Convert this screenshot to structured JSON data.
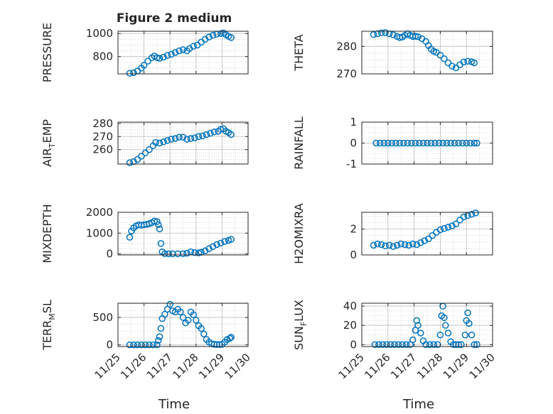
{
  "figure_title": "Figure 2 medium",
  "colors": {
    "marker": "#0072BD",
    "axis": "#262626",
    "grid": "#bdbdbd",
    "background": "#ffffff"
  },
  "x_axis": {
    "label": "Time",
    "range": [
      "11/25",
      "11/30"
    ],
    "tick_labels": [
      "11/25",
      "11/26",
      "11/27",
      "11/28",
      "11/29",
      "11/30"
    ]
  },
  "chart_data": [
    {
      "type": "scatter",
      "marker": "open-circle",
      "grid": true,
      "title": "Figure 2 medium",
      "ylabel": "PRESSURE",
      "ylabel_parts": null,
      "ylim": [
        650,
        1020
      ],
      "yticks": [
        800,
        1000
      ],
      "yticklabels": [
        "800",
        "1000"
      ],
      "points": [
        [
          0.45,
          655
        ],
        [
          0.6,
          660
        ],
        [
          0.75,
          675
        ],
        [
          0.9,
          700
        ],
        [
          1.0,
          725
        ],
        [
          1.15,
          760
        ],
        [
          1.3,
          790
        ],
        [
          1.4,
          805
        ],
        [
          1.5,
          790
        ],
        [
          1.6,
          785
        ],
        [
          1.75,
          795
        ],
        [
          1.9,
          810
        ],
        [
          2.05,
          820
        ],
        [
          2.2,
          835
        ],
        [
          2.35,
          850
        ],
        [
          2.5,
          860
        ],
        [
          2.65,
          850
        ],
        [
          2.75,
          870
        ],
        [
          2.9,
          890
        ],
        [
          3.05,
          900
        ],
        [
          3.2,
          925
        ],
        [
          3.35,
          950
        ],
        [
          3.5,
          970
        ],
        [
          3.65,
          985
        ],
        [
          3.8,
          995
        ],
        [
          3.95,
          1000
        ],
        [
          4.05,
          1005
        ],
        [
          4.15,
          990
        ],
        [
          4.25,
          975
        ],
        [
          4.35,
          965
        ]
      ]
    },
    {
      "type": "scatter",
      "marker": "open-circle",
      "grid": true,
      "ylabel": "THETA",
      "ylabel_parts": null,
      "ylim": [
        270,
        285.5
      ],
      "yticks": [
        270,
        280
      ],
      "yticklabels": [
        "270",
        "280"
      ],
      "points": [
        [
          0.45,
          284.3
        ],
        [
          0.6,
          284.6
        ],
        [
          0.75,
          284.9
        ],
        [
          0.9,
          285.0
        ],
        [
          1.05,
          284.6
        ],
        [
          1.2,
          284.2
        ],
        [
          1.35,
          283.6
        ],
        [
          1.45,
          283.2
        ],
        [
          1.55,
          283.4
        ],
        [
          1.65,
          284.0
        ],
        [
          1.75,
          284.6
        ],
        [
          1.85,
          284.0
        ],
        [
          1.95,
          283.6
        ],
        [
          2.05,
          283.7
        ],
        [
          2.15,
          283.5
        ],
        [
          2.3,
          282.8
        ],
        [
          2.45,
          281.8
        ],
        [
          2.55,
          280.3
        ],
        [
          2.65,
          279.0
        ],
        [
          2.75,
          278.2
        ],
        [
          2.85,
          277.8
        ],
        [
          3.0,
          276.8
        ],
        [
          3.15,
          275.5
        ],
        [
          3.3,
          274.0
        ],
        [
          3.45,
          272.8
        ],
        [
          3.6,
          272.2
        ],
        [
          3.75,
          273.3
        ],
        [
          3.9,
          274.3
        ],
        [
          4.05,
          274.6
        ],
        [
          4.2,
          274.4
        ],
        [
          4.3,
          274.0
        ]
      ]
    },
    {
      "type": "scatter",
      "marker": "open-circle",
      "grid": true,
      "ylabel": "AIR_TEMP",
      "ylabel_parts": [
        "AIR",
        "T",
        "EMP"
      ],
      "ylim": [
        249,
        281
      ],
      "yticks": [
        260,
        270,
        280
      ],
      "yticklabels": [
        "260",
        "270",
        "280"
      ],
      "points": [
        [
          0.45,
          250
        ],
        [
          0.6,
          250.8
        ],
        [
          0.75,
          252.5
        ],
        [
          0.9,
          255
        ],
        [
          1.05,
          257.5
        ],
        [
          1.2,
          260
        ],
        [
          1.35,
          263
        ],
        [
          1.45,
          265.5
        ],
        [
          1.6,
          265
        ],
        [
          1.75,
          266
        ],
        [
          1.9,
          267
        ],
        [
          2.05,
          268
        ],
        [
          2.2,
          268.5
        ],
        [
          2.35,
          269.5
        ],
        [
          2.5,
          269.5
        ],
        [
          2.65,
          268
        ],
        [
          2.8,
          268.5
        ],
        [
          2.95,
          269
        ],
        [
          3.1,
          270
        ],
        [
          3.25,
          270.5
        ],
        [
          3.4,
          271.5
        ],
        [
          3.55,
          272.5
        ],
        [
          3.7,
          273.5
        ],
        [
          3.85,
          274
        ],
        [
          3.95,
          275.5
        ],
        [
          4.05,
          276
        ],
        [
          4.15,
          274
        ],
        [
          4.25,
          273
        ],
        [
          4.35,
          271.5
        ]
      ]
    },
    {
      "type": "scatter",
      "marker": "open-circle",
      "grid": true,
      "ylabel": "RAINFALL",
      "ylabel_parts": null,
      "ylim": [
        -1,
        1
      ],
      "yticks": [
        -1,
        0,
        1
      ],
      "yticklabels": [
        "-1",
        "0",
        "1"
      ],
      "points": [
        [
          0.55,
          0
        ],
        [
          0.7,
          0
        ],
        [
          0.85,
          0
        ],
        [
          1.0,
          0
        ],
        [
          1.15,
          0
        ],
        [
          1.3,
          0
        ],
        [
          1.45,
          0
        ],
        [
          1.6,
          0
        ],
        [
          1.75,
          0
        ],
        [
          1.9,
          0
        ],
        [
          2.05,
          0
        ],
        [
          2.2,
          0
        ],
        [
          2.35,
          0
        ],
        [
          2.5,
          0
        ],
        [
          2.65,
          0
        ],
        [
          2.8,
          0
        ],
        [
          2.95,
          0
        ],
        [
          3.1,
          0
        ],
        [
          3.25,
          0
        ],
        [
          3.4,
          0
        ],
        [
          3.55,
          0
        ],
        [
          3.7,
          0
        ],
        [
          3.85,
          0
        ],
        [
          4.0,
          0
        ],
        [
          4.15,
          0
        ],
        [
          4.3,
          0
        ],
        [
          4.4,
          0
        ]
      ]
    },
    {
      "type": "scatter",
      "marker": "open-circle",
      "grid": true,
      "ylabel": "MIXDEPTH",
      "ylabel_parts": null,
      "ylim": [
        -50,
        2000
      ],
      "yticks": [
        0,
        1000,
        2000
      ],
      "yticklabels": [
        "0",
        "1000",
        "2000"
      ],
      "points": [
        [
          0.45,
          800
        ],
        [
          0.52,
          1100
        ],
        [
          0.6,
          1250
        ],
        [
          0.7,
          1350
        ],
        [
          0.8,
          1400
        ],
        [
          0.9,
          1380
        ],
        [
          1.0,
          1400
        ],
        [
          1.1,
          1420
        ],
        [
          1.2,
          1450
        ],
        [
          1.3,
          1500
        ],
        [
          1.4,
          1580
        ],
        [
          1.5,
          1550
        ],
        [
          1.55,
          1400
        ],
        [
          1.6,
          1200
        ],
        [
          1.65,
          500
        ],
        [
          1.7,
          100
        ],
        [
          1.8,
          10
        ],
        [
          1.95,
          5
        ],
        [
          2.1,
          5
        ],
        [
          2.3,
          5
        ],
        [
          2.5,
          10
        ],
        [
          2.65,
          30
        ],
        [
          2.8,
          100
        ],
        [
          2.95,
          60
        ],
        [
          3.1,
          50
        ],
        [
          3.2,
          80
        ],
        [
          3.35,
          150
        ],
        [
          3.5,
          250
        ],
        [
          3.65,
          350
        ],
        [
          3.8,
          450
        ],
        [
          3.95,
          520
        ],
        [
          4.1,
          600
        ],
        [
          4.25,
          650
        ],
        [
          4.35,
          700
        ]
      ]
    },
    {
      "type": "scatter",
      "marker": "open-circle",
      "grid": true,
      "ylabel": "H2OMIXRA",
      "ylabel_parts": null,
      "ylim": [
        0,
        3.3
      ],
      "yticks": [
        0,
        2
      ],
      "yticklabels": [
        "0",
        "2"
      ],
      "points": [
        [
          0.45,
          0.75
        ],
        [
          0.6,
          0.85
        ],
        [
          0.75,
          0.8
        ],
        [
          0.9,
          0.7
        ],
        [
          1.05,
          0.75
        ],
        [
          1.2,
          0.65
        ],
        [
          1.35,
          0.75
        ],
        [
          1.5,
          0.85
        ],
        [
          1.65,
          0.8
        ],
        [
          1.8,
          0.75
        ],
        [
          1.95,
          0.85
        ],
        [
          2.1,
          0.8
        ],
        [
          2.25,
          0.95
        ],
        [
          2.4,
          1.1
        ],
        [
          2.55,
          1.25
        ],
        [
          2.7,
          1.5
        ],
        [
          2.85,
          1.75
        ],
        [
          3.0,
          1.95
        ],
        [
          3.15,
          2.05
        ],
        [
          3.3,
          2.15
        ],
        [
          3.45,
          2.25
        ],
        [
          3.6,
          2.4
        ],
        [
          3.75,
          2.7
        ],
        [
          3.9,
          2.95
        ],
        [
          4.05,
          3.05
        ],
        [
          4.2,
          3.15
        ],
        [
          4.35,
          3.25
        ]
      ]
    },
    {
      "type": "scatter",
      "marker": "open-circle",
      "grid": true,
      "ylabel": "TERR_MSL",
      "ylabel_parts": [
        "TERR",
        "M",
        "SL"
      ],
      "ylim": [
        -30,
        760
      ],
      "yticks": [
        0,
        500
      ],
      "yticklabels": [
        "0",
        "500"
      ],
      "points": [
        [
          0.45,
          0
        ],
        [
          0.6,
          0
        ],
        [
          0.75,
          0
        ],
        [
          0.9,
          0
        ],
        [
          1.05,
          0
        ],
        [
          1.2,
          0
        ],
        [
          1.35,
          0
        ],
        [
          1.5,
          0
        ],
        [
          1.55,
          80
        ],
        [
          1.6,
          150
        ],
        [
          1.65,
          300
        ],
        [
          1.7,
          480
        ],
        [
          1.8,
          560
        ],
        [
          1.9,
          650
        ],
        [
          2.0,
          740
        ],
        [
          2.1,
          620
        ],
        [
          2.2,
          600
        ],
        [
          2.3,
          650
        ],
        [
          2.4,
          600
        ],
        [
          2.5,
          500
        ],
        [
          2.6,
          400
        ],
        [
          2.7,
          450
        ],
        [
          2.8,
          600
        ],
        [
          2.9,
          550
        ],
        [
          3.0,
          450
        ],
        [
          3.1,
          350
        ],
        [
          3.2,
          300
        ],
        [
          3.3,
          200
        ],
        [
          3.4,
          100
        ],
        [
          3.5,
          50
        ],
        [
          3.6,
          20
        ],
        [
          3.7,
          10
        ],
        [
          3.8,
          5
        ],
        [
          3.9,
          5
        ],
        [
          4.0,
          10
        ],
        [
          4.1,
          50
        ],
        [
          4.2,
          100
        ],
        [
          4.3,
          120
        ],
        [
          4.35,
          140
        ]
      ]
    },
    {
      "type": "scatter",
      "marker": "open-circle",
      "grid": true,
      "ylabel": "SUN_FLUX",
      "ylabel_parts": [
        "SUN",
        "F",
        "LUX"
      ],
      "ylim": [
        -2,
        43
      ],
      "yticks": [
        0,
        20,
        40
      ],
      "yticklabels": [
        "0",
        "20",
        "40"
      ],
      "points": [
        [
          0.5,
          0
        ],
        [
          0.65,
          0
        ],
        [
          0.8,
          0
        ],
        [
          0.95,
          0
        ],
        [
          1.1,
          0
        ],
        [
          1.25,
          0
        ],
        [
          1.4,
          0
        ],
        [
          1.55,
          0
        ],
        [
          1.7,
          0
        ],
        [
          1.85,
          0
        ],
        [
          1.95,
          5
        ],
        [
          2.05,
          15
        ],
        [
          2.1,
          25
        ],
        [
          2.15,
          20
        ],
        [
          2.25,
          12
        ],
        [
          2.35,
          4
        ],
        [
          2.45,
          0
        ],
        [
          2.6,
          0
        ],
        [
          2.75,
          0
        ],
        [
          2.9,
          0
        ],
        [
          3.0,
          10
        ],
        [
          3.05,
          30
        ],
        [
          3.1,
          40
        ],
        [
          3.15,
          28
        ],
        [
          3.2,
          20
        ],
        [
          3.3,
          12
        ],
        [
          3.4,
          3
        ],
        [
          3.5,
          0
        ],
        [
          3.6,
          0
        ],
        [
          3.7,
          0
        ],
        [
          3.8,
          0
        ],
        [
          3.95,
          10
        ],
        [
          4.0,
          25
        ],
        [
          4.05,
          33
        ],
        [
          4.1,
          22
        ],
        [
          4.2,
          10
        ],
        [
          4.3,
          0
        ],
        [
          4.4,
          0
        ]
      ]
    }
  ]
}
